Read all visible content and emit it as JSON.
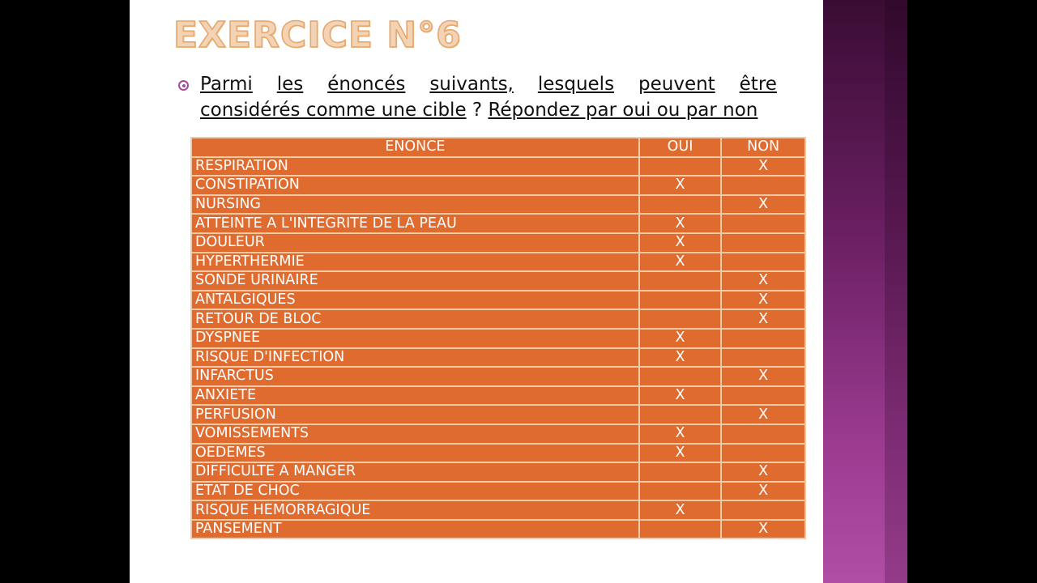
{
  "slide": {
    "title": "EXERCICE N°6",
    "question": {
      "words_line1": [
        "Parmi",
        "les",
        "énoncés",
        "suivants,",
        "lesquels",
        "peuvent",
        "être"
      ],
      "line2_underlined_a": "considérés comme une cible",
      "line2_plain": " ? ",
      "line2_underlined_b": "Répondez par oui ou par non"
    },
    "table": {
      "headers": [
        "ENONCE",
        "OUI",
        "NON"
      ],
      "rows": [
        {
          "enonce": "RESPIRATION",
          "oui": "",
          "non": "X"
        },
        {
          "enonce": "CONSTIPATION",
          "oui": "X",
          "non": ""
        },
        {
          "enonce": "NURSING",
          "oui": "",
          "non": "X"
        },
        {
          "enonce": "ATTEINTE A L'INTEGRITE DE LA PEAU",
          "oui": "X",
          "non": ""
        },
        {
          "enonce": "DOULEUR",
          "oui": "X",
          "non": ""
        },
        {
          "enonce": "HYPERTHERMIE",
          "oui": "X",
          "non": ""
        },
        {
          "enonce": "SONDE URINAIRE",
          "oui": "",
          "non": "X"
        },
        {
          "enonce": "ANTALGIQUES",
          "oui": "",
          "non": "X"
        },
        {
          "enonce": "RETOUR DE BLOC",
          "oui": "",
          "non": "X"
        },
        {
          "enonce": "DYSPNEE",
          "oui": "X",
          "non": ""
        },
        {
          "enonce": "RISQUE D'INFECTION",
          "oui": "X",
          "non": ""
        },
        {
          "enonce": "INFARCTUS",
          "oui": "",
          "non": "X"
        },
        {
          "enonce": "ANXIETE",
          "oui": "X",
          "non": ""
        },
        {
          "enonce": "PERFUSION",
          "oui": "",
          "non": "X"
        },
        {
          "enonce": "VOMISSEMENTS",
          "oui": "X",
          "non": ""
        },
        {
          "enonce": "OEDEMES",
          "oui": "X",
          "non": ""
        },
        {
          "enonce": "DIFFICULTE A MANGER",
          "oui": "",
          "non": "X"
        },
        {
          "enonce": "ETAT DE CHOC",
          "oui": "",
          "non": "X"
        },
        {
          "enonce": "RISQUE HEMORRAGIQUE",
          "oui": "X",
          "non": ""
        },
        {
          "enonce": "PANSEMENT",
          "oui": "",
          "non": "X"
        }
      ]
    }
  },
  "colors": {
    "table_fill": "#df6b2f",
    "table_border": "#f5c8a6",
    "accent_purple": "#a64a9a",
    "title_fill": "#f3d3b5",
    "title_outline": "#e8a76a"
  }
}
